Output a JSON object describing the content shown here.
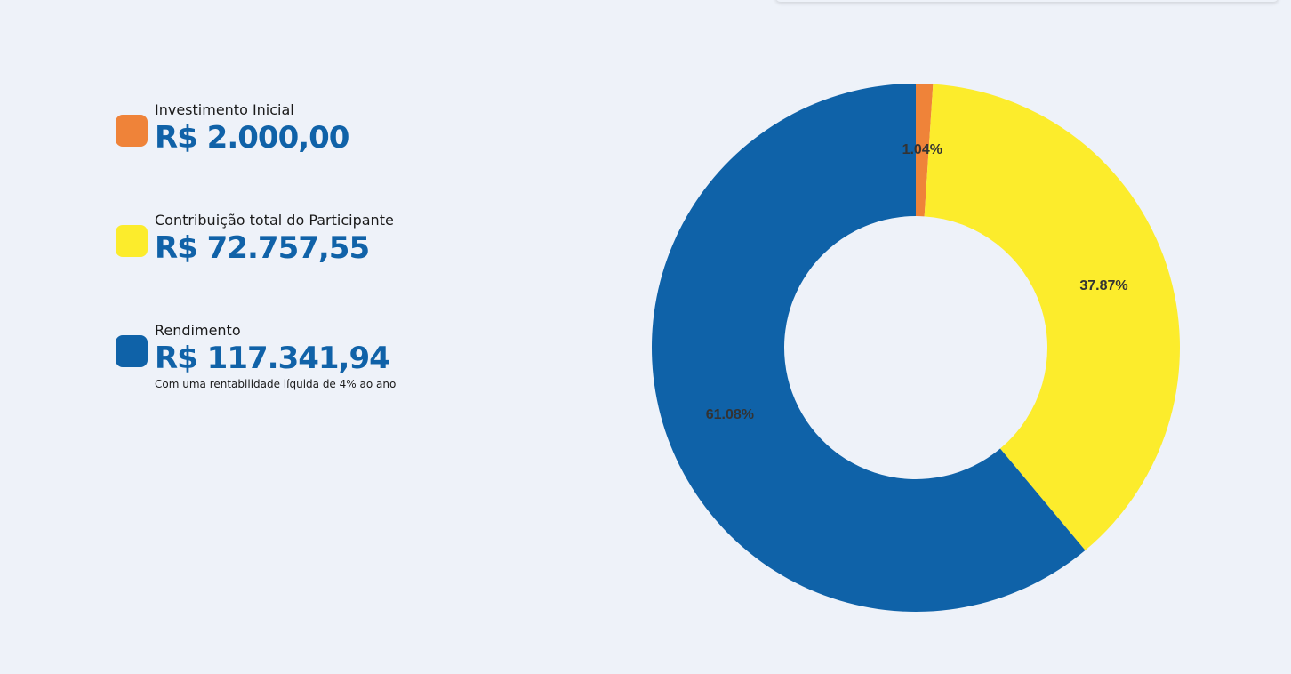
{
  "legend": {
    "items": [
      {
        "label": "Investimento Inicial",
        "amount": "R$ 2.000,00",
        "color": "#ef8339"
      },
      {
        "label": "Contribuição total do Participante",
        "amount": "R$ 72.757,55",
        "color": "#fcec2c"
      },
      {
        "label": "Rendimento",
        "amount": "R$ 117.341,94",
        "color": "#0f62a8",
        "note": "Com uma rentabilidade líquida de 4% ao ano"
      }
    ]
  },
  "chart_data": {
    "type": "pie",
    "donut": true,
    "categories": [
      "Investimento Inicial",
      "Contribuição total do Participante",
      "Rendimento"
    ],
    "values": [
      1.04,
      37.87,
      61.08
    ],
    "value_labels": [
      "1.04%",
      "37.87%",
      "61.08%"
    ],
    "colors": [
      "#ef8339",
      "#fcec2c",
      "#0f62a8"
    ],
    "start_angle_deg": 0,
    "direction": "clockwise"
  }
}
